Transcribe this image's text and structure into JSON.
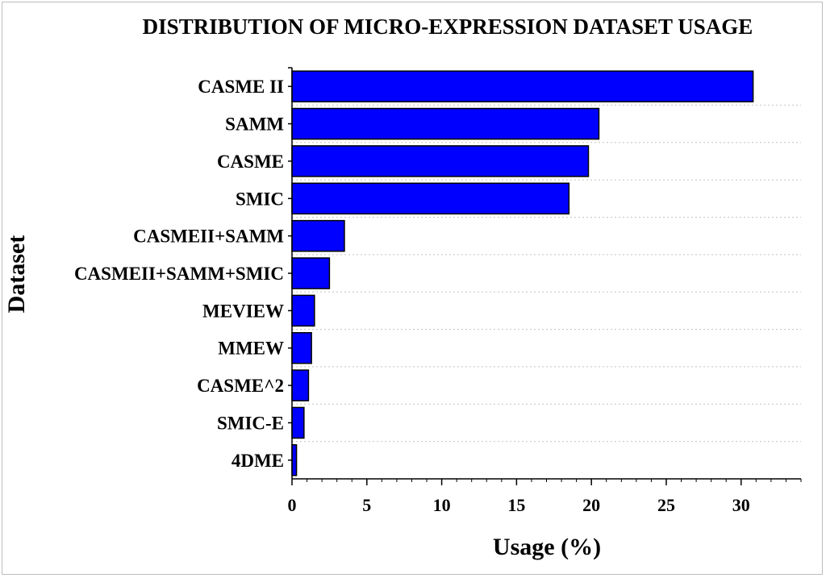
{
  "chart_data": {
    "type": "bar",
    "orientation": "horizontal",
    "title": "DISTRIBUTION OF MICRO-EXPRESSION DATASET USAGE",
    "xlabel": "Usage (%)",
    "ylabel": "Dataset",
    "categories": [
      "CASME II",
      "SAMM",
      "CASME",
      "SMIC",
      "CASMEII+SAMM",
      "CASMEII+SAMM+SMIC",
      "MEVIEW",
      "MMEW",
      "CASME^2",
      "SMIC-E",
      "4DME"
    ],
    "values": [
      30.8,
      20.5,
      19.8,
      18.5,
      3.5,
      2.5,
      1.5,
      1.3,
      1.1,
      0.8,
      0.3
    ],
    "xlim": [
      0,
      34
    ],
    "xticks": [
      0,
      5,
      10,
      15,
      20,
      25,
      30
    ],
    "bar_color": "#0000ff",
    "bar_edge_color": "#000000",
    "grid": "horizontal dotted",
    "legend": "none"
  }
}
